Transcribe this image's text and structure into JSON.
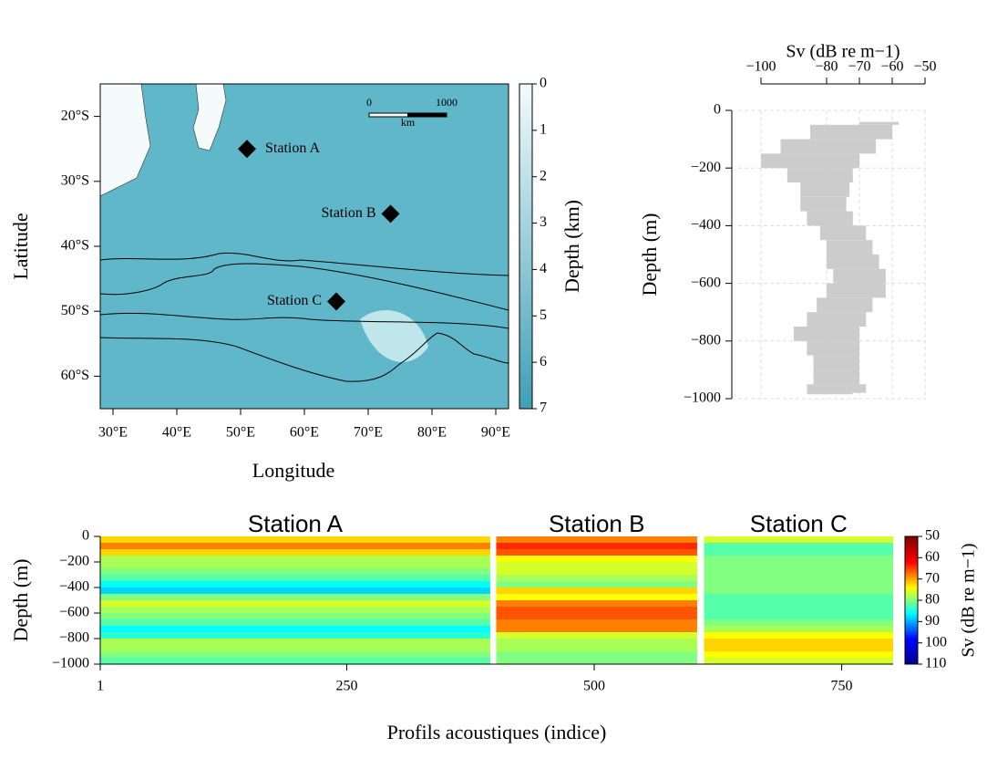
{
  "chart_data": [
    {
      "type": "map",
      "xlabel": "Longitude",
      "ylabel": "Latitude",
      "xlim": [
        28,
        92
      ],
      "ylim": [
        -65,
        -15
      ],
      "xticks": [
        {
          "value": 30,
          "label": "30°E"
        },
        {
          "value": 40,
          "label": "40°E"
        },
        {
          "value": 50,
          "label": "50°E"
        },
        {
          "value": 60,
          "label": "60°E"
        },
        {
          "value": 70,
          "label": "70°E"
        },
        {
          "value": 80,
          "label": "80°E"
        },
        {
          "value": 90,
          "label": "90°E"
        }
      ],
      "yticks": [
        {
          "value": -20,
          "label": "20°S"
        },
        {
          "value": -30,
          "label": "30°S"
        },
        {
          "value": -40,
          "label": "40°S"
        },
        {
          "value": -50,
          "label": "50°S"
        },
        {
          "value": -60,
          "label": "60°S"
        }
      ],
      "points": [
        {
          "label": "Station A",
          "lon": 51,
          "lat": -25
        },
        {
          "label": "Station B",
          "lon": 73.5,
          "lat": -35
        },
        {
          "label": "Station C",
          "lon": 65,
          "lat": -48.5
        }
      ],
      "scale_bar": {
        "ticks": [
          0,
          1000
        ],
        "unit": "km"
      },
      "colorbar": {
        "label": "Depth (km)",
        "lim": [
          0,
          7
        ],
        "ticks": [
          0,
          1,
          2,
          3,
          4,
          5,
          6,
          7
        ],
        "colors": [
          "#f2fbfb",
          "#3f9fb7"
        ]
      }
    },
    {
      "type": "area",
      "xlabel": "Sv (dB re m−1)",
      "ylabel": "Depth (m)",
      "color": "#cccccc",
      "grid": true,
      "xlim": [
        -100,
        -50
      ],
      "ylim": [
        -1000,
        0
      ],
      "xticks": [
        {
          "value": -100,
          "label": "−100"
        },
        {
          "value": -80,
          "label": "−80"
        },
        {
          "value": -70,
          "label": "−70"
        },
        {
          "value": -60,
          "label": "−60"
        },
        {
          "value": -50,
          "label": "−50"
        }
      ],
      "yticks": [
        0,
        {
          "value": -200,
          "label": "−200"
        },
        {
          "value": -400,
          "label": "−400"
        },
        {
          "value": -600,
          "label": "−600"
        },
        {
          "value": -800,
          "label": "−800"
        },
        {
          "value": -1000,
          "label": "−1000"
        }
      ],
      "y": [
        -40,
        -50,
        -100,
        -150,
        -200,
        -250,
        -300,
        -350,
        -400,
        -450,
        -500,
        -550,
        -600,
        -650,
        -700,
        -750,
        -800,
        -850,
        -900,
        -950,
        -980
      ],
      "series": [
        {
          "values": [
            -70,
            -85,
            -94,
            -100,
            -92,
            -88,
            -88,
            -86,
            -82,
            -80,
            -80,
            -78,
            -80,
            -83,
            -86,
            -90,
            -86,
            -84,
            -84,
            -86,
            -86
          ]
        },
        {
          "values": [
            -58,
            -60,
            -65,
            -70,
            -72,
            -73,
            -74,
            -72,
            -68,
            -66,
            -64,
            -62,
            -62,
            -66,
            -68,
            -70,
            -70,
            -70,
            -70,
            -68,
            -72
          ]
        }
      ]
    },
    {
      "type": "heatmap",
      "xlabel": "Profils acoustiques (indice)",
      "ylabel": "Depth (m)",
      "xlim": [
        1,
        802
      ],
      "ylim": [
        -1000,
        0
      ],
      "xticks": [
        1,
        250,
        500,
        750
      ],
      "yticks": [
        0,
        {
          "value": -200,
          "label": "−200"
        },
        {
          "value": -400,
          "label": "−400"
        },
        {
          "value": -600,
          "label": "−600"
        },
        {
          "value": -800,
          "label": "−800"
        },
        {
          "value": -1000,
          "label": "−1000"
        }
      ],
      "depth_bins": [
        0,
        -50,
        -100,
        -150,
        -200,
        -250,
        -300,
        -350,
        -400,
        -450,
        -500,
        -550,
        -600,
        -650,
        -700,
        -750,
        -800,
        -850,
        -900,
        -950,
        -1000
      ],
      "stations": [
        {
          "name": "Station A",
          "x_range": [
            1,
            395
          ],
          "values": [
            -72,
            -68,
            -72,
            -78,
            -78,
            -80,
            -82,
            -86,
            -88,
            -80,
            -76,
            -78,
            -80,
            -82,
            -86,
            -84,
            -78,
            -78,
            -80,
            -82
          ]
        },
        {
          "name": "Station B",
          "x_range": [
            401,
            604
          ],
          "values": [
            -68,
            -64,
            -66,
            -74,
            -76,
            -76,
            -78,
            -80,
            -72,
            -74,
            -68,
            -66,
            -66,
            -68,
            -68,
            -76,
            -78,
            -78,
            -80,
            -80
          ]
        },
        {
          "name": "Station C",
          "x_range": [
            611,
            802
          ],
          "values": [
            -76,
            -82,
            -82,
            -80,
            -80,
            -80,
            -80,
            -80,
            -80,
            -82,
            -82,
            -82,
            -82,
            -80,
            -78,
            -74,
            -72,
            -72,
            -74,
            -76
          ]
        }
      ],
      "colorbar": {
        "label": "Sv (dB re m−1)",
        "lim": [
          -110,
          -50
        ],
        "ticks": [
          {
            "value": -50,
            "label": "50"
          },
          {
            "value": -60,
            "label": "60"
          },
          {
            "value": -70,
            "label": "70"
          },
          {
            "value": -80,
            "label": "80"
          },
          {
            "value": -90,
            "label": "90"
          },
          {
            "value": -100,
            "label": "100"
          },
          {
            "value": -110,
            "label": "110"
          }
        ],
        "colors": [
          "#00008f",
          "#0000ff",
          "#00ffff",
          "#ffff00",
          "#ff0000",
          "#800000"
        ]
      }
    }
  ]
}
